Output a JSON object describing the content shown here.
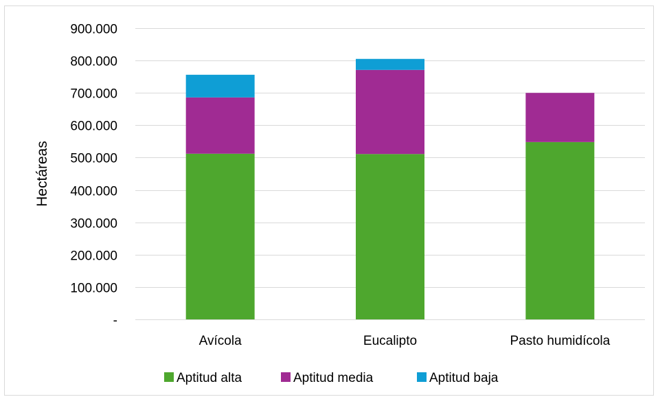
{
  "chart_data": {
    "type": "bar",
    "stacked": true,
    "categories": [
      "Avícola",
      "Eucalipto",
      "Pasto humidícola"
    ],
    "series": [
      {
        "name": "Aptitud alta",
        "color": "#4ea72e",
        "values": [
          512000,
          511000,
          548000
        ]
      },
      {
        "name": "Aptitud media",
        "color": "#a02b93",
        "values": [
          174000,
          260000,
          152000
        ]
      },
      {
        "name": "Aptitud baja",
        "color": "#0f9ed5",
        "values": [
          70000,
          34000,
          0
        ]
      }
    ],
    "title": "",
    "xlabel": "",
    "ylabel": "Hectáreas",
    "ylim": [
      0,
      900000
    ],
    "y_ticks": [
      {
        "value": 0,
        "label": "-"
      },
      {
        "value": 100000,
        "label": "100.000"
      },
      {
        "value": 200000,
        "label": "200.000"
      },
      {
        "value": 300000,
        "label": "300.000"
      },
      {
        "value": 400000,
        "label": "400.000"
      },
      {
        "value": 500000,
        "label": "500.000"
      },
      {
        "value": 600000,
        "label": "600.000"
      },
      {
        "value": 700000,
        "label": "700.000"
      },
      {
        "value": 800000,
        "label": "800.000"
      },
      {
        "value": 900000,
        "label": "900.000"
      }
    ],
    "grid": true,
    "legend_position": "bottom"
  }
}
